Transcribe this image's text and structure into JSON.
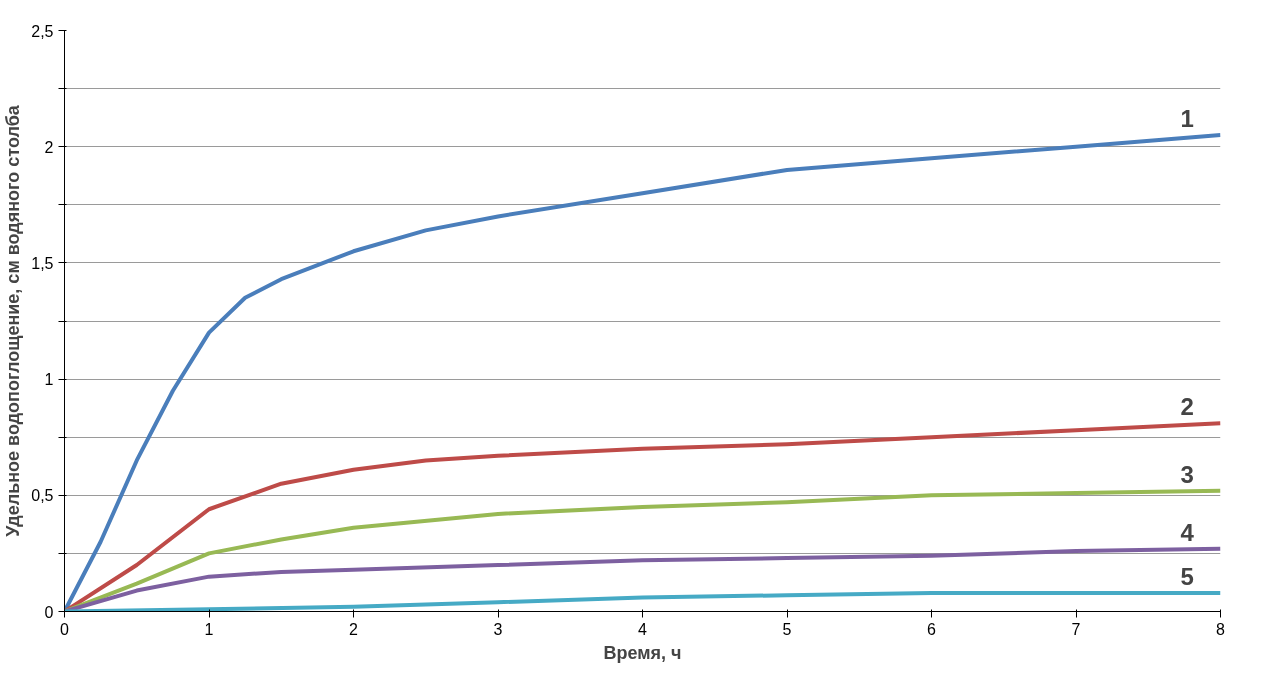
{
  "chart_data": {
    "type": "line",
    "xlabel": "Время, ч",
    "ylabel": "Удельное водопоглощение, см водяного столба",
    "xlim": [
      0,
      8
    ],
    "xticks": [
      0,
      1,
      2,
      3,
      4,
      5,
      6,
      7,
      8
    ],
    "ylim": [
      0,
      2.5
    ],
    "yticks": [
      0,
      {
        "value": 0.25,
        "label": null
      },
      {
        "value": 0.5,
        "label": "0,5"
      },
      {
        "value": 0.75,
        "label": null
      },
      1,
      {
        "value": 1.25,
        "label": null
      },
      {
        "value": 1.5,
        "label": "1,5"
      },
      {
        "value": 1.75,
        "label": null
      },
      2,
      {
        "value": 2.25,
        "label": null
      },
      {
        "value": 2.5,
        "label": "2,5"
      }
    ],
    "grid": "y",
    "marker": "none",
    "line_style": "solid",
    "series": [
      {
        "name": "1",
        "color": "#4a7ebb",
        "x": [
          0,
          0.25,
          0.5,
          0.75,
          1,
          1.25,
          1.5,
          2,
          2.5,
          3,
          4,
          5,
          6,
          7,
          8
        ],
        "values": [
          0,
          0.3,
          0.65,
          0.95,
          1.2,
          1.35,
          1.43,
          1.55,
          1.64,
          1.7,
          1.8,
          1.9,
          1.95,
          2.0,
          2.05
        ]
      },
      {
        "name": "2",
        "color": "#be4b48",
        "x": [
          0,
          0.5,
          1,
          1.5,
          2,
          2.5,
          3,
          4,
          5,
          6,
          7,
          8
        ],
        "values": [
          0,
          0.2,
          0.44,
          0.55,
          0.61,
          0.65,
          0.67,
          0.7,
          0.72,
          0.75,
          0.78,
          0.81
        ]
      },
      {
        "name": "3",
        "color": "#98b954",
        "x": [
          0,
          0.5,
          1,
          1.5,
          2,
          3,
          4,
          5,
          6,
          7,
          8
        ],
        "values": [
          0,
          0.12,
          0.25,
          0.31,
          0.36,
          0.42,
          0.45,
          0.47,
          0.5,
          0.51,
          0.52
        ]
      },
      {
        "name": "4",
        "color": "#7d60a0",
        "x": [
          0,
          0.5,
          1,
          1.5,
          2,
          3,
          4,
          5,
          6,
          7,
          8
        ],
        "values": [
          0,
          0.09,
          0.15,
          0.17,
          0.18,
          0.2,
          0.22,
          0.23,
          0.24,
          0.26,
          0.27
        ]
      },
      {
        "name": "5",
        "color": "#46aac5",
        "x": [
          0,
          1,
          2,
          3,
          4,
          5,
          6,
          7,
          8
        ],
        "values": [
          0,
          0.01,
          0.02,
          0.04,
          0.06,
          0.07,
          0.08,
          0.08,
          0.08
        ]
      }
    ]
  }
}
